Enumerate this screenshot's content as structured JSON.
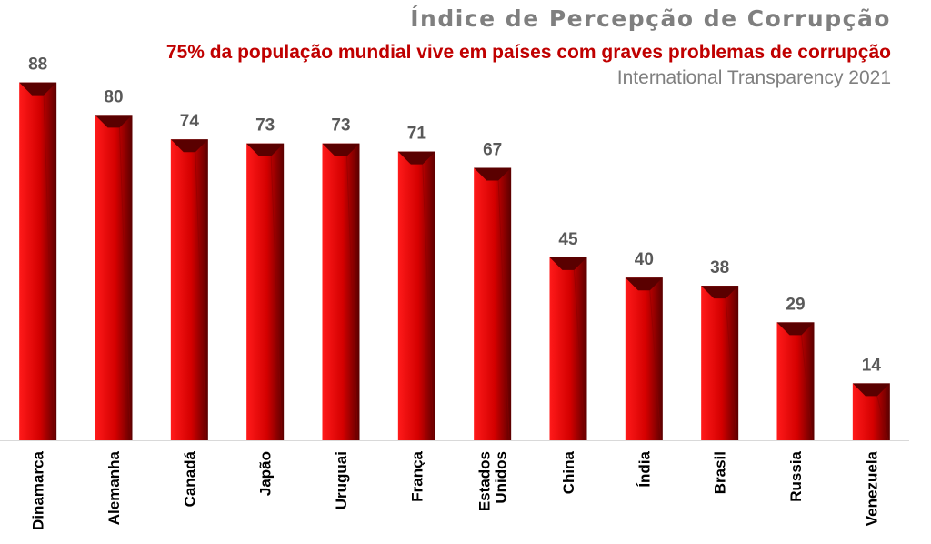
{
  "header": {
    "title": "Índice de Percepção de Corrupção",
    "subtitle": "75% da população mundial vive em países com graves problemas de corrupção",
    "source": "International Transparency 2021"
  },
  "colors": {
    "bar_light": "#ff1a1a",
    "bar_mid": "#d40000",
    "bar_dark": "#5a0000",
    "label": "#595959",
    "axis": "#d9d9d9"
  },
  "chart_data": {
    "type": "bar",
    "title": "Índice de Percepção de Corrupção",
    "subtitle": "75% da população mundial vive em países com graves problemas de corrupção",
    "source": "International Transparency 2021",
    "categories": [
      "Dinamarca",
      "Alemanha",
      "Canadá",
      "Japão",
      "Uruguai",
      "França",
      "Estados Unidos",
      "China",
      "Índia",
      "Brasil",
      "Russia",
      "Venezuela"
    ],
    "category_lines": [
      [
        "Dinamarca"
      ],
      [
        "Alemanha"
      ],
      [
        "Canadá"
      ],
      [
        "Japão"
      ],
      [
        "Uruguai"
      ],
      [
        "França"
      ],
      [
        "Estados",
        "Unidos"
      ],
      [
        "China"
      ],
      [
        "Índia"
      ],
      [
        "Brasil"
      ],
      [
        "Russia"
      ],
      [
        "Venezuela"
      ]
    ],
    "values": [
      88,
      80,
      74,
      73,
      73,
      71,
      67,
      45,
      40,
      38,
      29,
      14
    ],
    "data_labels": true,
    "xlabel": "",
    "ylabel": "",
    "ylim": [
      0,
      100
    ],
    "grid": false,
    "legend": false,
    "tick_label_rotation": "vertical"
  }
}
